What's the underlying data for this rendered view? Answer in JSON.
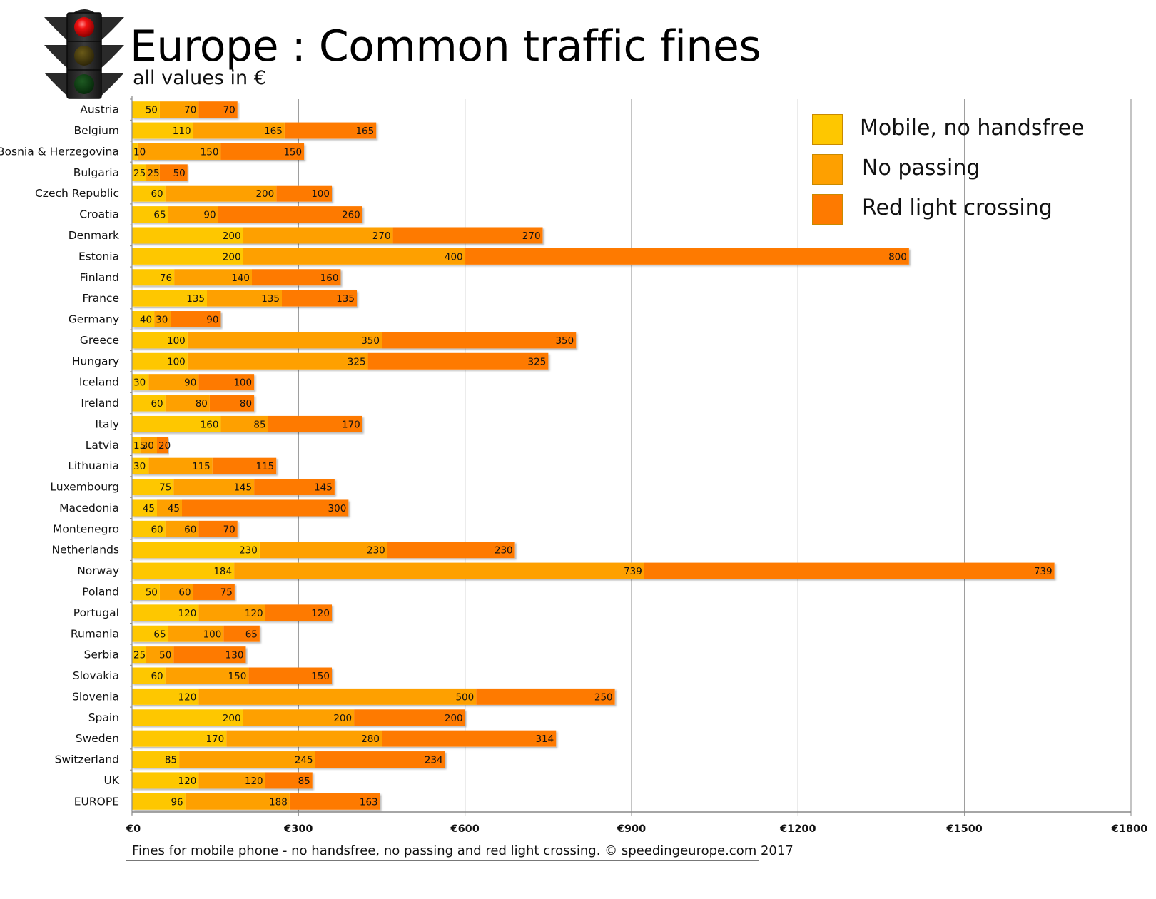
{
  "header": {
    "title": "Europe : Common traffic fines",
    "subtitle": "all values in €",
    "logo_icon": "traffic-light-icon"
  },
  "footer": {
    "caption": "Fines for mobile phone - no handsfree, no passing and red light crossing.   © speedingeurope.com 2017"
  },
  "colors": {
    "mobile": "#FEC700",
    "passing": "#FEA000",
    "redlight": "#FE7A00",
    "grid": "#888888",
    "text": "#111111"
  },
  "chart_data": {
    "type": "bar",
    "orientation": "horizontal",
    "stacked": true,
    "title": "Europe : Common traffic fines",
    "subtitle": "all values in €",
    "xlabel": "",
    "ylabel": "",
    "xlim": [
      0,
      1800
    ],
    "x_ticks": [
      0,
      300,
      600,
      900,
      1200,
      1500,
      1800
    ],
    "x_tick_labels": [
      "€0",
      "€300",
      "€600",
      "€900",
      "€1200",
      "€1500",
      "€1800"
    ],
    "grid": "vertical",
    "legend_position": "top-right",
    "categories": [
      "Austria",
      "Belgium",
      "Bosnia & Herzegovina",
      "Bulgaria",
      "Czech Republic",
      "Croatia",
      "Denmark",
      "Estonia",
      "Finland",
      "France",
      "Germany",
      "Greece",
      "Hungary",
      "Iceland",
      "Ireland",
      "Italy",
      "Latvia",
      "Lithuania",
      "Luxembourg",
      "Macedonia",
      "Montenegro",
      "Netherlands",
      "Norway",
      "Poland",
      "Portugal",
      "Rumania",
      "Serbia",
      "Slovakia",
      "Slovenia",
      "Spain",
      "Sweden",
      "Switzerland",
      "UK",
      "EUROPE"
    ],
    "series": [
      {
        "name": "Mobile, no handsfree",
        "color": "#FEC700",
        "values": [
          50,
          110,
          10,
          25,
          60,
          65,
          200,
          200,
          76,
          135,
          40,
          100,
          100,
          30,
          60,
          160,
          15,
          30,
          75,
          45,
          60,
          230,
          184,
          50,
          120,
          65,
          25,
          60,
          120,
          200,
          170,
          85,
          120,
          96
        ]
      },
      {
        "name": "No passing",
        "color": "#FEA000",
        "values": [
          70,
          165,
          150,
          25,
          200,
          90,
          270,
          400,
          140,
          135,
          30,
          350,
          325,
          90,
          80,
          85,
          30,
          115,
          145,
          45,
          60,
          230,
          739,
          60,
          120,
          100,
          50,
          150,
          500,
          200,
          280,
          245,
          120,
          188
        ]
      },
      {
        "name": "Red light crossing",
        "color": "#FE7A00",
        "values": [
          70,
          165,
          150,
          50,
          100,
          260,
          270,
          800,
          160,
          135,
          90,
          350,
          325,
          100,
          80,
          170,
          20,
          115,
          145,
          300,
          70,
          230,
          739,
          75,
          120,
          65,
          130,
          150,
          250,
          200,
          314,
          234,
          85,
          163
        ]
      }
    ]
  }
}
